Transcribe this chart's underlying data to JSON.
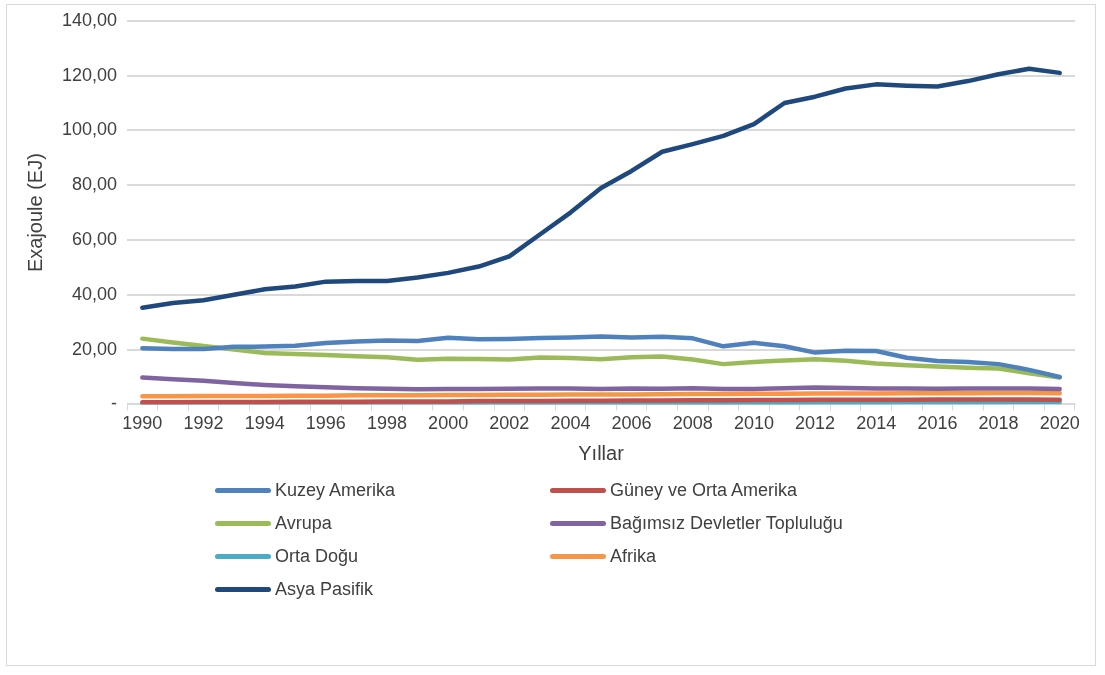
{
  "chart_data": {
    "type": "line",
    "xlabel": "Yıllar",
    "ylabel": "Exajoule (EJ)",
    "categories": [
      "1990",
      null,
      "1992",
      null,
      "1994",
      null,
      "1996",
      null,
      "1998",
      null,
      "2000",
      null,
      "2002",
      null,
      "2004",
      null,
      "2006",
      null,
      "2008",
      null,
      "2010",
      null,
      "2012",
      null,
      "2014",
      null,
      "2016",
      null,
      "2018",
      null,
      "2020"
    ],
    "ylim": [
      0,
      140
    ],
    "yticks": [
      {
        "value": 0,
        "label": "-"
      },
      {
        "value": 20,
        "label": "20,00"
      },
      {
        "value": 40,
        "label": "40,00"
      },
      {
        "value": 60,
        "label": "60,00"
      },
      {
        "value": 80,
        "label": "80,00"
      },
      {
        "value": 100,
        "label": "100,00"
      },
      {
        "value": 120,
        "label": "120,00"
      },
      {
        "value": 140,
        "label": "140,00"
      }
    ],
    "grid": "y",
    "legend": "bottom",
    "marker": "none",
    "line_style": "solid",
    "series": [
      {
        "name": "Kuzey Amerika",
        "color": "#4f81bd",
        "values": [
          20.5,
          20.2,
          20.2,
          21,
          21.1,
          21.4,
          22.4,
          23,
          23.3,
          23.1,
          24.3,
          23.8,
          23.9,
          24.2,
          24.4,
          24.8,
          24.4,
          24.7,
          24.1,
          21.2,
          22.5,
          21.2,
          18.9,
          19.6,
          19.5,
          17,
          15.8,
          15.5,
          14.7,
          12.6,
          10
        ]
      },
      {
        "name": "Güney ve Orta Amerika",
        "color": "#c0504d",
        "values": [
          0.8,
          0.8,
          0.9,
          0.9,
          0.9,
          1,
          1,
          1,
          1.1,
          1.1,
          1.1,
          1.2,
          1.2,
          1.2,
          1.3,
          1.3,
          1.4,
          1.4,
          1.5,
          1.5,
          1.6,
          1.6,
          1.7,
          1.7,
          1.7,
          1.7,
          1.8,
          1.8,
          1.8,
          1.8,
          1.7
        ]
      },
      {
        "name": "Avrupa",
        "color": "#9bbb59",
        "values": [
          24,
          22.6,
          21.3,
          20,
          18.8,
          18.4,
          18,
          17.6,
          17.2,
          16.3,
          16.7,
          16.6,
          16.4,
          17.1,
          16.9,
          16.5,
          17.2,
          17.5,
          16.4,
          14.7,
          15.5,
          16,
          16.5,
          15.9,
          14.9,
          14.3,
          13.8,
          13.4,
          13.1,
          11.4,
          9.8
        ]
      },
      {
        "name": "Bağımsız Devletler Topluluğu",
        "color": "#8064a2",
        "values": [
          9.8,
          9.2,
          8.6,
          7.8,
          7.1,
          6.6,
          6.3,
          5.9,
          5.7,
          5.5,
          5.6,
          5.6,
          5.7,
          5.8,
          5.8,
          5.6,
          5.8,
          5.7,
          5.9,
          5.6,
          5.6,
          5.9,
          6.2,
          6,
          5.8,
          5.8,
          5.7,
          5.8,
          5.8,
          5.8,
          5.6
        ]
      },
      {
        "name": "Orta Doğu",
        "color": "#4bacc6",
        "values": [
          0.3,
          0.3,
          0.3,
          0.3,
          0.3,
          0.3,
          0.3,
          0.3,
          0.3,
          0.3,
          0.4,
          0.4,
          0.4,
          0.4,
          0.4,
          0.5,
          0.5,
          0.5,
          0.5,
          0.6,
          0.6,
          0.6,
          0.7,
          0.7,
          0.7,
          0.8,
          0.8,
          0.8,
          0.8,
          0.9,
          0.9
        ]
      },
      {
        "name": "Afrika",
        "color": "#f79646",
        "values": [
          3,
          3,
          3.1,
          3.1,
          3.1,
          3.2,
          3.2,
          3.3,
          3.3,
          3.3,
          3.4,
          3.4,
          3.5,
          3.5,
          3.6,
          3.6,
          3.6,
          3.7,
          3.8,
          3.8,
          3.9,
          3.9,
          4,
          4,
          4,
          4.1,
          4.1,
          4.1,
          4.2,
          4.2,
          4.1
        ]
      },
      {
        "name": "Asya Pasifik",
        "color": "#1f497d",
        "values": [
          35.3,
          37,
          38,
          40,
          42,
          43,
          44.8,
          45,
          45,
          46.3,
          48,
          50.3,
          54,
          62,
          70,
          79,
          85.2,
          92.2,
          95,
          98,
          102.3,
          110,
          112.3,
          115.3,
          116.8,
          116.3,
          116,
          118,
          120.5,
          122.5,
          121
        ]
      }
    ]
  }
}
